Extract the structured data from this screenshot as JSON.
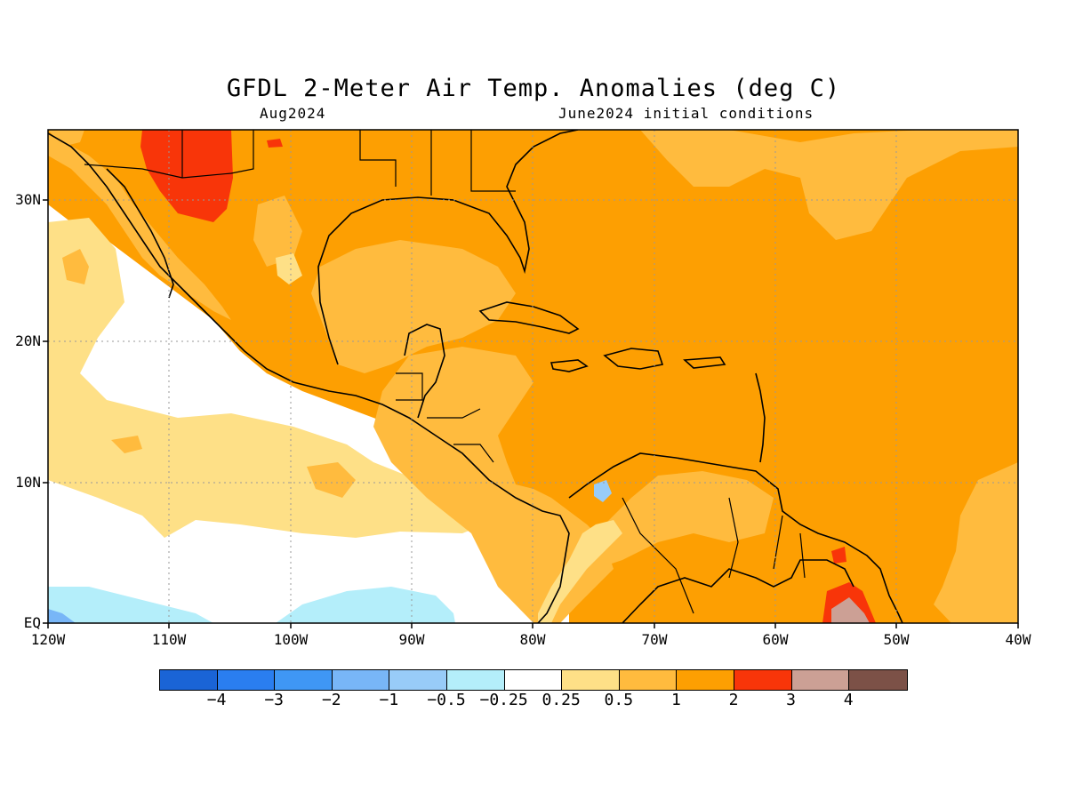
{
  "title": "GFDL 2-Meter Air Temp. Anomalies (deg C)",
  "subtitle_left": "Aug2024",
  "subtitle_right": "June2024 initial conditions",
  "x_ticks": [
    "120W",
    "110W",
    "100W",
    "90W",
    "80W",
    "70W",
    "60W",
    "50W",
    "40W"
  ],
  "y_ticks": [
    "30N",
    "20N",
    "10N",
    "EQ"
  ],
  "colorbar": {
    "colors": [
      "#1a64d6",
      "#2a7ef0",
      "#3f97f5",
      "#78b6f7",
      "#98ccf8",
      "#b4eefa",
      "#ffffff",
      "#fee087",
      "#ffbb3e",
      "#fd9f02",
      "#f83509",
      "#cca095",
      "#7c5147"
    ],
    "labels": [
      "−4",
      "−3",
      "−2",
      "−1",
      "−0.5",
      "−0.25",
      "0.25",
      "0.5",
      "1",
      "2",
      "3",
      "4"
    ]
  },
  "legend_colors": {
    "below_-4": "#1a64d6",
    "-0.25_to_0.25": "#ffffff",
    "0.25_to_0.5": "#fee087",
    "0.5_to_1": "#ffbb3e",
    "1_to_2": "#fd9f02",
    "2_to_3": "#f83509",
    "3_to_4": "#cca095"
  },
  "map_extent": {
    "lon": [
      -120,
      -40
    ],
    "lat": [
      0,
      35
    ]
  }
}
